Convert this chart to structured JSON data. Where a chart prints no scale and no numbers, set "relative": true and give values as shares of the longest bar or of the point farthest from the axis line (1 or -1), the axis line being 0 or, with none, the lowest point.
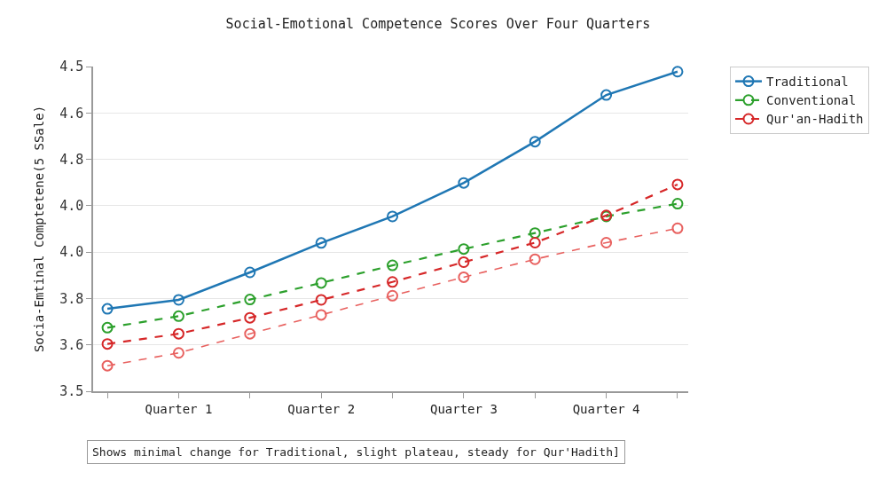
{
  "chart_data": {
    "type": "line",
    "title": "Social-Emotional Competence Scores Over Four Quarters",
    "ylabel": "Socia-Emtinal Comptetene(5 SSale)",
    "relative": true,
    "categories": [
      null,
      "Quarter 1",
      null,
      "Quarter 2",
      null,
      "Quarter 3",
      null,
      "Quarter 4",
      null
    ],
    "series": [
      {
        "name": "Traditional",
        "color": "#1f77b4",
        "line_style": "solid",
        "marker": "circle",
        "values": [
          0.258,
          0.286,
          0.372,
          0.464,
          0.547,
          0.652,
          0.781,
          0.927,
          1
        ]
      },
      {
        "name": "Conventional",
        "color": "#2ca02c",
        "line_style": "dashed",
        "marker": "circle",
        "values": [
          0.199,
          0.235,
          0.287,
          0.339,
          0.394,
          0.445,
          0.495,
          0.547,
          0.587
        ]
      },
      {
        "name": "Qur'an-Hadith",
        "color": "#d62728",
        "line_style": "dashed",
        "marker": "circle",
        "values": [
          0.148,
          0.18,
          0.23,
          0.286,
          0.342,
          0.404,
          0.465,
          0.55,
          0.647
        ]
      },
      {
        "color": "#e8615f",
        "line_style": "dashed",
        "marker": "circle",
        "values": [
          0.08,
          0.12,
          0.18,
          0.239,
          0.299,
          0.357,
          0.413,
          0.465,
          0.51
        ]
      }
    ],
    "grid": "y",
    "legend": "top right",
    "annotations": [
      "4.5",
      "4.6",
      "4.8",
      "4.0",
      "4.0",
      "3.8",
      "3.6",
      "3.5",
      "Shows minimal change for Traditional, slight plateau, steady for Qur'Hadith]"
    ]
  }
}
